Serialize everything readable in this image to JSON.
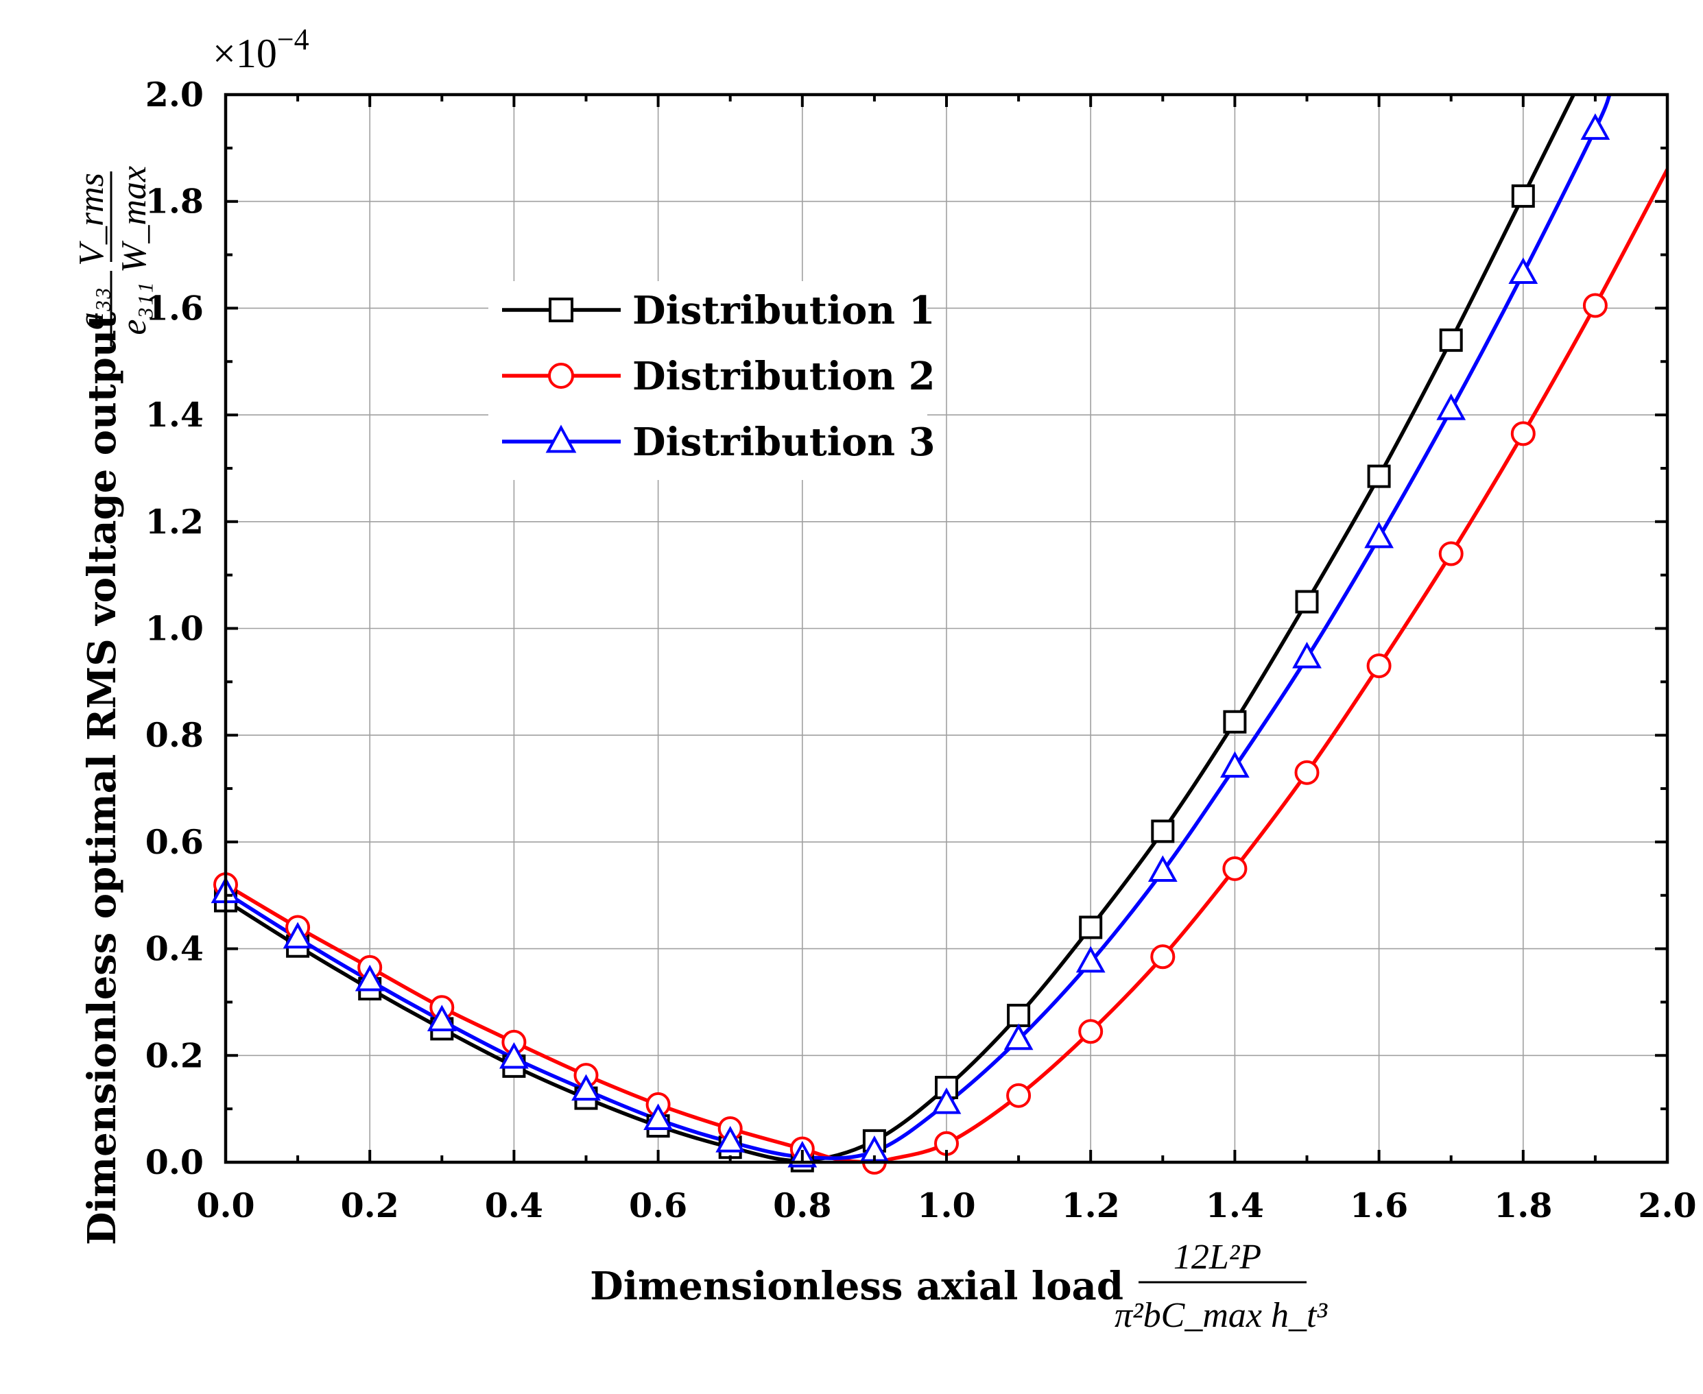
{
  "chart_data": {
    "type": "line",
    "title": "",
    "xlabel": "Dimensionless axial load",
    "xlabel_formula": {
      "numerator": "12L²P",
      "denominator": "π²bC_max h_t³"
    },
    "ylabel": "Dimensionless optimal RMS voltage output",
    "ylabel_formula": {
      "left_num": "a₃₃",
      "left_den": "e₃₁₁",
      "right_num": "V_rms",
      "right_den": "W_max"
    },
    "y_multiplier": "×10",
    "y_multiplier_exp": "−4",
    "xlim": [
      0.0,
      2.0
    ],
    "ylim": [
      0.0,
      2.0
    ],
    "x_ticks": [
      "0.0",
      "0.2",
      "0.4",
      "0.6",
      "0.8",
      "1.0",
      "1.2",
      "1.4",
      "1.6",
      "1.8",
      "2.0"
    ],
    "y_ticks": [
      "0.0",
      "0.2",
      "0.4",
      "0.6",
      "0.8",
      "1.0",
      "1.2",
      "1.4",
      "1.6",
      "1.8",
      "2.0"
    ],
    "grid": true,
    "legend_position": "upper-left-center",
    "series": [
      {
        "name": "Distribution 1",
        "color": "#000000",
        "marker": "square",
        "x": [
          0.0,
          0.1,
          0.2,
          0.3,
          0.4,
          0.5,
          0.6,
          0.7,
          0.8,
          0.9,
          1.0,
          1.1,
          1.2,
          1.3,
          1.4,
          1.5,
          1.6,
          1.7,
          1.8
        ],
        "y": [
          0.49,
          0.405,
          0.325,
          0.25,
          0.18,
          0.12,
          0.068,
          0.028,
          0.003,
          0.04,
          0.14,
          0.275,
          0.44,
          0.62,
          0.825,
          1.05,
          1.285,
          1.54,
          1.81
        ],
        "curve_x": [
          1.87
        ],
        "curve_y": [
          2.0
        ]
      },
      {
        "name": "Distribution 2",
        "color": "#ff0000",
        "marker": "circle",
        "x": [
          0.0,
          0.1,
          0.2,
          0.3,
          0.4,
          0.5,
          0.6,
          0.7,
          0.8,
          0.9,
          1.0,
          1.1,
          1.2,
          1.3,
          1.4,
          1.5,
          1.6,
          1.7,
          1.8,
          1.9
        ],
        "y": [
          0.52,
          0.44,
          0.365,
          0.29,
          0.225,
          0.163,
          0.108,
          0.063,
          0.025,
          0.0,
          0.035,
          0.125,
          0.245,
          0.385,
          0.55,
          0.73,
          0.93,
          1.14,
          1.365,
          1.605
        ],
        "curve_x": [
          0.85,
          0.92,
          2.0
        ],
        "curve_y": [
          0.005,
          0.005,
          1.86
        ]
      },
      {
        "name": "Distribution 3",
        "color": "#0000ff",
        "marker": "triangle",
        "x": [
          0.0,
          0.1,
          0.2,
          0.3,
          0.4,
          0.5,
          0.6,
          0.7,
          0.8,
          0.9,
          1.0,
          1.1,
          1.2,
          1.3,
          1.4,
          1.5,
          1.6,
          1.7,
          1.8,
          1.9
        ],
        "y": [
          0.505,
          0.42,
          0.34,
          0.265,
          0.195,
          0.135,
          0.08,
          0.038,
          0.01,
          0.02,
          0.11,
          0.23,
          0.375,
          0.545,
          0.74,
          0.945,
          1.17,
          1.41,
          1.665,
          1.935
        ],
        "curve_x": [
          1.92
        ],
        "curve_y": [
          2.0
        ]
      }
    ]
  }
}
